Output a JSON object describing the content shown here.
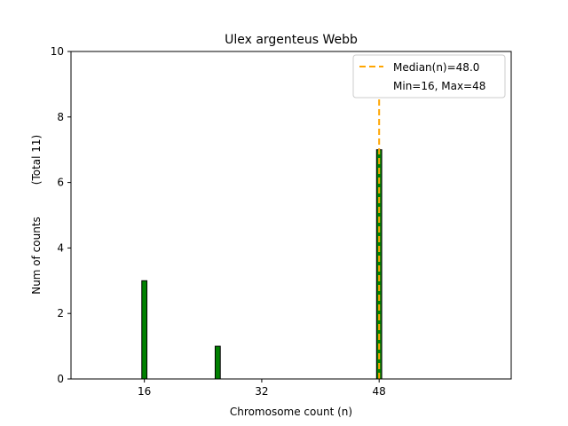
{
  "chart_data": {
    "type": "bar",
    "title": "Ulex argenteus Webb",
    "xlabel": "Chromosome count (n)",
    "ylabel": "Num of counts",
    "ylabel_total": "(Total 11)",
    "xlim": [
      6,
      66
    ],
    "ylim": [
      0,
      10
    ],
    "xticks": [
      16,
      32,
      48
    ],
    "yticks": [
      0,
      2,
      4,
      6,
      8,
      10
    ],
    "bars": [
      {
        "x": 16,
        "value": 3
      },
      {
        "x": 26,
        "value": 1
      },
      {
        "x": 48,
        "value": 7
      }
    ],
    "bar_width": 0.7,
    "bar_color": "#008000",
    "median": 48.0,
    "median_color": "#FFA500",
    "legend": {
      "placement": "top-right",
      "entries": [
        "Median(n)=48.0",
        "Min=16, Max=48"
      ]
    }
  }
}
